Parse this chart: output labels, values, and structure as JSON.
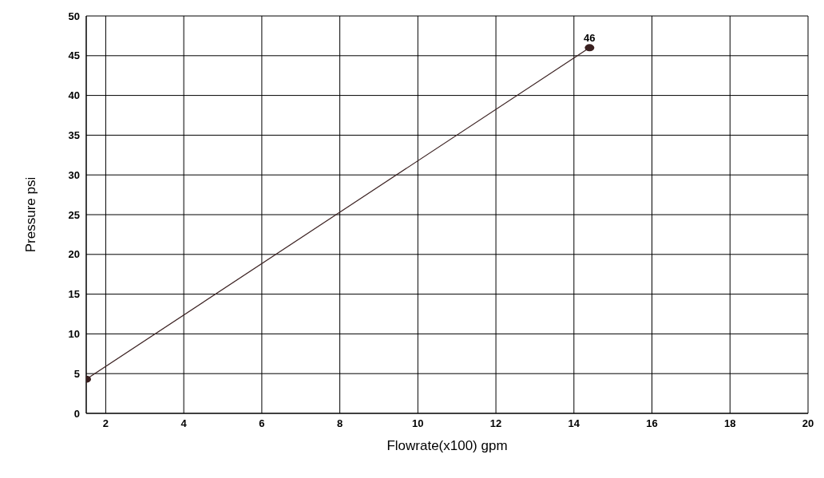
{
  "chart_data": {
    "type": "line",
    "xlabel": "Flowrate(x100)  gpm",
    "ylabel": "Pressure  psi",
    "x": [
      1.5,
      14.4
    ],
    "series": [
      {
        "color": "#3a2020",
        "values": [
          4.3,
          46
        ],
        "value_labels": [
          null,
          "46"
        ]
      }
    ],
    "xlim": [
      1.5,
      20
    ],
    "xticks": [
      2,
      4,
      6,
      8,
      10,
      12,
      14,
      16,
      18,
      20
    ],
    "ylim": [
      0,
      50
    ],
    "yticks": [
      0,
      5,
      10,
      15,
      20,
      25,
      30,
      35,
      40,
      45,
      50
    ],
    "grid": true,
    "marker": "circle",
    "line_style": "solid"
  }
}
